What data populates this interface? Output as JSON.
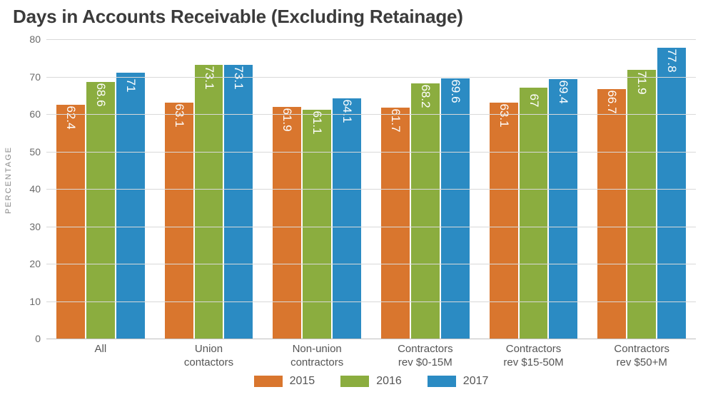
{
  "chart": {
    "type": "bar",
    "title": "Days in Accounts Receivable (Excluding Retainage)",
    "title_fontsize": 26,
    "title_color": "#3b3b3b",
    "ylabel": "PERCENTAGE",
    "ylabel_fontsize": 11,
    "ylabel_color": "#888888",
    "ylim": [
      0,
      80
    ],
    "ytick_step": 10,
    "yticks": [
      "0",
      "10",
      "20",
      "30",
      "40",
      "50",
      "60",
      "70",
      "80"
    ],
    "grid_color": "#d9d9d9",
    "baseline_color": "#bfbfbf",
    "background_color": "#ffffff",
    "bar_label_color": "#ffffff",
    "bar_label_fontsize": 17,
    "xlabel_color": "#555555",
    "xlabel_fontsize": 15,
    "ytick_color": "#6a6a6a",
    "ytick_fontsize": 14,
    "categories": [
      "All",
      "Union\ncontactors",
      "Non-union\ncontractors",
      "Contractors\nrev $0-15M",
      "Contractors\nrev $15-50M",
      "Contractors\nrev $50+M"
    ],
    "series": [
      {
        "name": "2015",
        "color": "#d9762e",
        "values": [
          62.4,
          63.1,
          61.9,
          61.7,
          63.1,
          66.7
        ]
      },
      {
        "name": "2016",
        "color": "#8bad3f",
        "values": [
          68.6,
          73.1,
          61.1,
          68.2,
          67.0,
          71.9
        ],
        "value_labels": [
          "68.6",
          "73.1",
          "61.1",
          "68.2",
          "67",
          "71.9"
        ]
      },
      {
        "name": "2017",
        "color": "#2b8bc3",
        "values": [
          71.0,
          73.1,
          64.1,
          69.6,
          69.4,
          77.8
        ],
        "value_labels": [
          "71",
          "73.1",
          "64.1",
          "69.6",
          "69.4",
          "77.8"
        ]
      }
    ],
    "legend_fontsize": 16,
    "legend_color": "#555555",
    "legend_swatch_w": 40,
    "legend_swatch_h": 16
  }
}
